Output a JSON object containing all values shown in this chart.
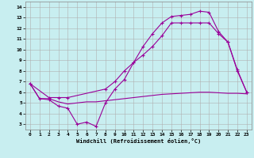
{
  "xlabel": "Windchill (Refroidissement éolien,°C)",
  "background_color": "#c8eef0",
  "line_color": "#990099",
  "grid_color": "#b0b0b0",
  "xlim": [
    -0.5,
    23.5
  ],
  "ylim": [
    2.5,
    14.5
  ],
  "xticks": [
    0,
    1,
    2,
    3,
    4,
    5,
    6,
    7,
    8,
    9,
    10,
    11,
    12,
    13,
    14,
    15,
    16,
    17,
    18,
    19,
    20,
    21,
    22,
    23
  ],
  "yticks": [
    3,
    4,
    5,
    6,
    7,
    8,
    9,
    10,
    11,
    12,
    13,
    14
  ],
  "line1_x": [
    0,
    1,
    2,
    3,
    4,
    5,
    6,
    7,
    8,
    9,
    10,
    11,
    12,
    13,
    14,
    15,
    16,
    17,
    18,
    19,
    20,
    21,
    22,
    23
  ],
  "line1_y": [
    6.8,
    5.4,
    5.3,
    4.7,
    4.5,
    3.0,
    3.2,
    2.8,
    5.0,
    6.3,
    7.2,
    8.8,
    10.3,
    11.5,
    12.5,
    13.1,
    13.2,
    13.3,
    13.6,
    13.5,
    11.7,
    10.7,
    8.1,
    6.0
  ],
  "line2_x": [
    0,
    2,
    3,
    4,
    8,
    9,
    10,
    11,
    12,
    13,
    14,
    15,
    16,
    17,
    18,
    19,
    20,
    21,
    22,
    23
  ],
  "line2_y": [
    6.8,
    5.5,
    5.5,
    5.5,
    6.3,
    7.0,
    8.0,
    8.8,
    9.5,
    10.3,
    11.3,
    12.5,
    12.5,
    12.5,
    12.5,
    12.5,
    11.5,
    10.7,
    8.0,
    6.0
  ],
  "line3_x": [
    0,
    1,
    2,
    3,
    4,
    5,
    6,
    7,
    8,
    9,
    10,
    11,
    12,
    13,
    14,
    15,
    16,
    17,
    18,
    19,
    20,
    21,
    22,
    23
  ],
  "line3_y": [
    6.8,
    5.4,
    5.4,
    5.1,
    4.9,
    5.0,
    5.1,
    5.1,
    5.2,
    5.3,
    5.4,
    5.5,
    5.6,
    5.7,
    5.8,
    5.85,
    5.9,
    5.95,
    6.0,
    6.0,
    5.95,
    5.9,
    5.9,
    5.85
  ]
}
